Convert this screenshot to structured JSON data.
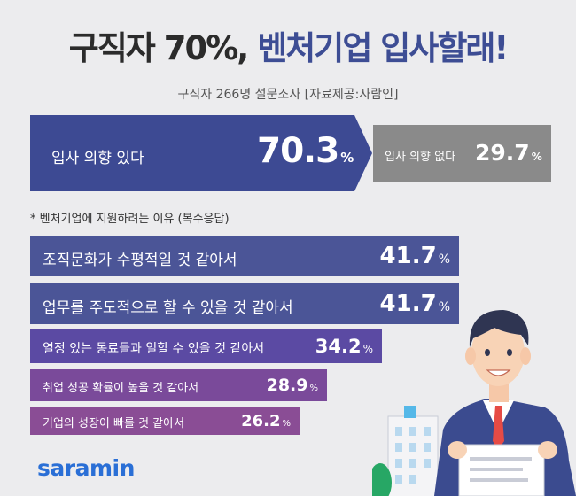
{
  "title": {
    "part1": "구직자 70%,",
    "part2": "벤처기업 입사할래!"
  },
  "subtitle": "구직자 266명 설문조사 [자료제공:사람인]",
  "intent": {
    "yes_label": "입사 의향 있다",
    "yes_value": "70.3",
    "no_label": "입사 의향 없다",
    "no_value": "29.7",
    "unit": "%"
  },
  "reasons_heading": "* 벤처기업에 지원하려는 이유 (복수응답)",
  "chart_data": {
    "type": "bar",
    "categories": [
      "조직문화가 수평적일 것 같아서",
      "업무를 주도적으로 할 수 있을 것 같아서",
      "열정 있는 동료들과 일할 수 있을 것 같아서",
      "취업 성공 확률이 높을 것 같아서",
      "기업의 성장이 빠를 것 같아서"
    ],
    "values": [
      41.7,
      41.7,
      34.2,
      28.9,
      26.2
    ],
    "unit": "%",
    "colors": [
      "#4b5597",
      "#4b5597",
      "#5b4aa3",
      "#7a4a9a",
      "#8a4d95"
    ]
  },
  "logo": "saramin",
  "colors": {
    "accent": "#3d4a93",
    "gray": "#8a8a8a",
    "logo": "#2a6fd6"
  }
}
